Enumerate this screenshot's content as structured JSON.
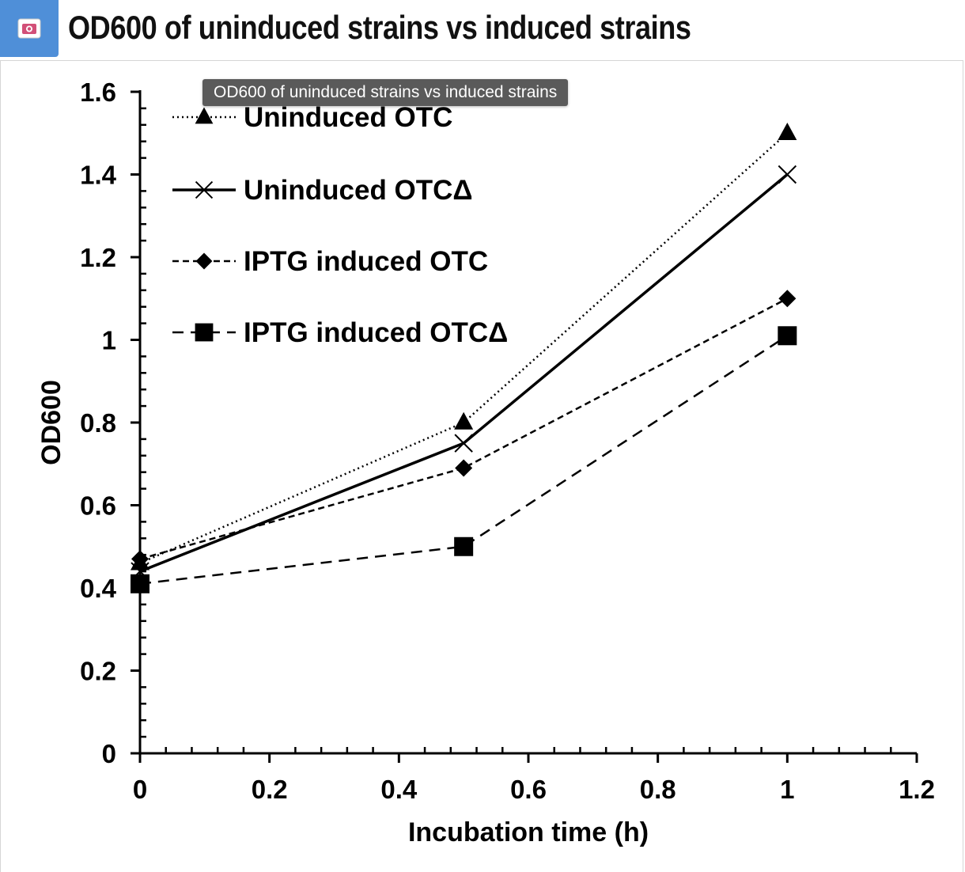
{
  "window": {
    "title": "OD600 of uninduced strains vs induced strains",
    "icon": "image-viewer-icon"
  },
  "tooltip": {
    "text": "OD600 of uninduced strains vs induced strains"
  },
  "chart_data": {
    "type": "line",
    "title": "OD600 of uninduced strains vs induced strains",
    "xlabel": "Incubation time (h)",
    "ylabel": "OD600",
    "xlim": [
      0,
      1.2
    ],
    "ylim": [
      0,
      1.6
    ],
    "xticks": [
      "0",
      "0.2",
      "0.4",
      "0.6",
      "0.8",
      "1",
      "1.2"
    ],
    "yticks": [
      "0",
      "0.2",
      "0.4",
      "0.6",
      "0.8",
      "1",
      "1.2",
      "1.4",
      "1.6"
    ],
    "legend_position": "top-left",
    "grid": false,
    "series": [
      {
        "name": "Uninduced OTC",
        "x": [
          0,
          0.5,
          1
        ],
        "values": [
          0.46,
          0.8,
          1.5
        ],
        "line": "dotted",
        "marker": "triangle"
      },
      {
        "name": "Uninduced OTCΔ",
        "x": [
          0,
          0.5,
          1
        ],
        "values": [
          0.44,
          0.75,
          1.4
        ],
        "line": "solid",
        "marker": "x"
      },
      {
        "name": "IPTG induced OTC",
        "x": [
          0,
          0.5,
          1
        ],
        "values": [
          0.47,
          0.69,
          1.1
        ],
        "line": "short-dash",
        "marker": "diamond"
      },
      {
        "name": "IPTG induced OTCΔ",
        "x": [
          0,
          0.5,
          1
        ],
        "values": [
          0.41,
          0.5,
          1.01
        ],
        "line": "long-dash",
        "marker": "square"
      }
    ]
  }
}
